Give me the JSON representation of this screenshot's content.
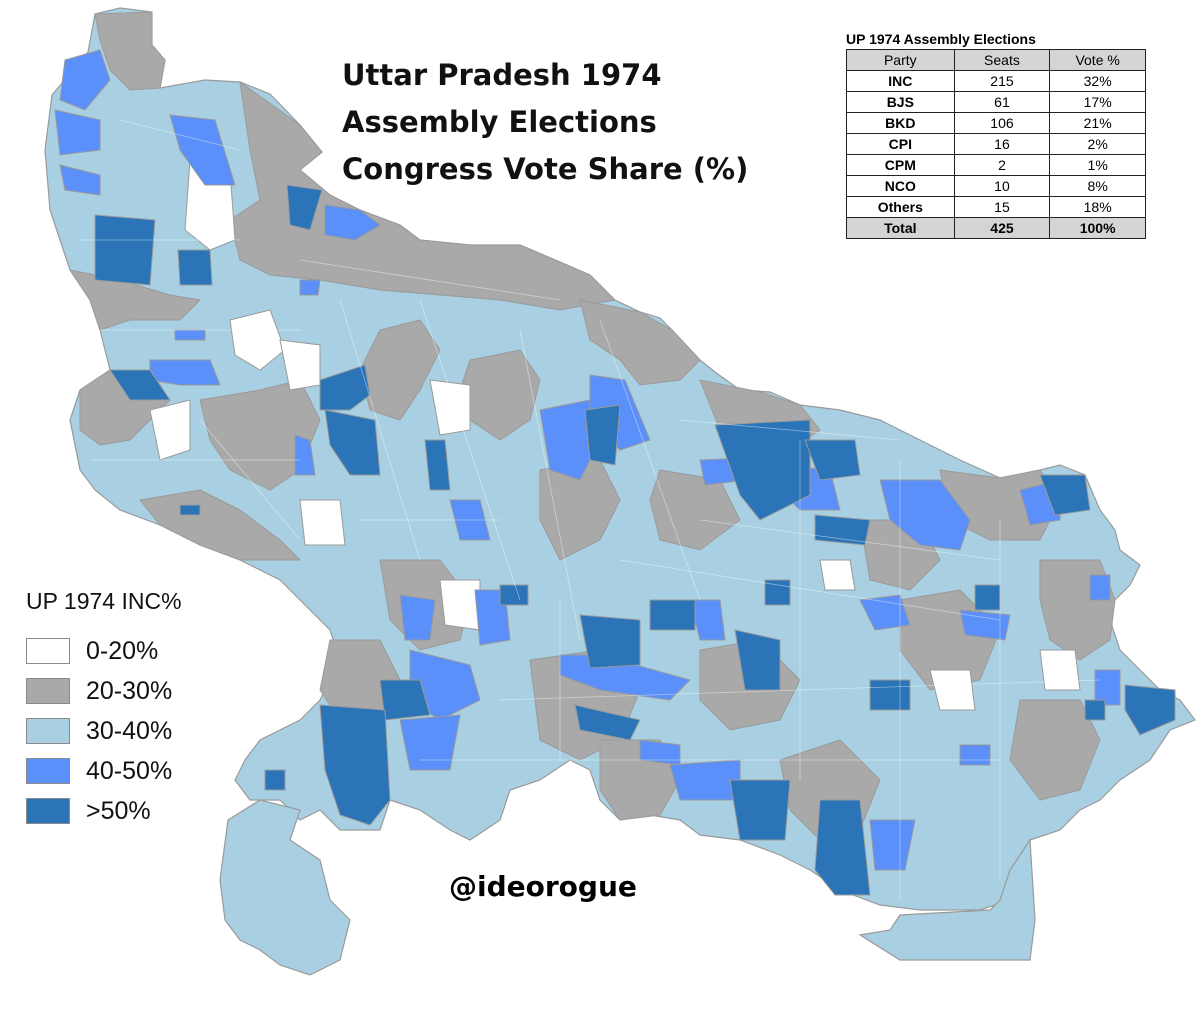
{
  "title_lines": [
    "Uttar Pradesh 1974",
    "Assembly Elections",
    "Congress Vote Share (%)"
  ],
  "results_table": {
    "title": "UP 1974 Assembly Elections",
    "headers": [
      "Party",
      "Seats",
      "Vote %"
    ],
    "rows": [
      {
        "party": "INC",
        "seats": "215",
        "vote": "32%"
      },
      {
        "party": "BJS",
        "seats": "61",
        "vote": "17%"
      },
      {
        "party": "BKD",
        "seats": "106",
        "vote": "21%"
      },
      {
        "party": "CPI",
        "seats": "16",
        "vote": "2%"
      },
      {
        "party": "CPM",
        "seats": "2",
        "vote": "1%"
      },
      {
        "party": "NCO",
        "seats": "10",
        "vote": "8%"
      },
      {
        "party": "Others",
        "seats": "15",
        "vote": "18%"
      }
    ],
    "total": {
      "party": "Total",
      "seats": "425",
      "vote": "100%"
    }
  },
  "legend": {
    "title": "UP 1974 INC%",
    "items": [
      {
        "label": "0-20%",
        "color": "#ffffff"
      },
      {
        "label": "20-30%",
        "color": "#a9a9a9"
      },
      {
        "label": "30-40%",
        "color": "#a8d0e2"
      },
      {
        "label": "40-50%",
        "color": "#5b8ff9"
      },
      {
        "label": ">50%",
        "color": "#2b74b8"
      }
    ]
  },
  "credit": "@ideorogue",
  "map_colors": {
    "low": "#ffffff",
    "grey": "#a9a9a9",
    "light": "#a8d0e2",
    "mid": "#5b8ff9",
    "dark": "#2b74b8",
    "border": "#9a9a9a"
  }
}
